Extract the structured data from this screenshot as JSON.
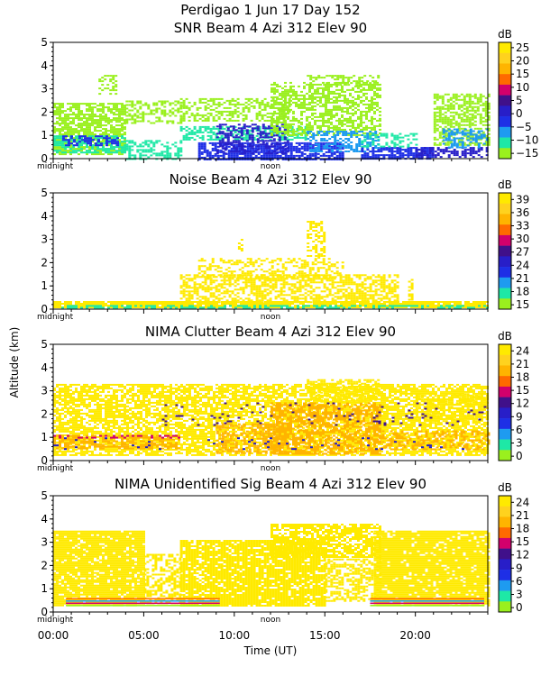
{
  "figure": {
    "header": "Perdigao    1 Jun 17 Day 152",
    "ylabel": "Altitude (km)",
    "xlabel": "Time (UT)",
    "x_ticks": [
      "00:00",
      "05:00",
      "10:00",
      "15:00",
      "20:00"
    ],
    "x_tick_hours": [
      0,
      5,
      10,
      15,
      20
    ],
    "xlim_hours": [
      0,
      24
    ],
    "marker_midnight": "midnight",
    "marker_noon": "noon",
    "colorbar_colors": [
      "#9af01e",
      "#1ee8a6",
      "#1e9bf0",
      "#1e2fe6",
      "#281ec8",
      "#40108a",
      "#d2006c",
      "#ff6a00",
      "#ffb400",
      "#ffd21e",
      "#ffea00"
    ]
  },
  "chart_data": [
    {
      "type": "heatmap",
      "title": "SNR Beam 4 Azi 312 Elev 90",
      "ylim": [
        0,
        5
      ],
      "y_ticks": [
        "0",
        "1",
        "2",
        "3",
        "4",
        "5"
      ],
      "colorbar_label": "dB",
      "colorbar_ticks": [
        "25",
        "20",
        "15",
        "10",
        "5",
        "0",
        "−5",
        "−10",
        "−15"
      ],
      "colorbar_range": [
        -17,
        27
      ]
    },
    {
      "type": "heatmap",
      "title": "Noise Beam 4 Azi 312 Elev 90",
      "ylim": [
        0,
        5
      ],
      "y_ticks": [
        "0",
        "1",
        "2",
        "3",
        "4",
        "5"
      ],
      "colorbar_label": "dB",
      "colorbar_ticks": [
        "39",
        "36",
        "33",
        "30",
        "27",
        "24",
        "21",
        "18",
        "15"
      ],
      "colorbar_range": [
        14,
        40.5
      ]
    },
    {
      "type": "heatmap",
      "title": "NIMA Clutter Beam 4 Azi 312 Elev 90",
      "ylim": [
        0,
        5
      ],
      "y_ticks": [
        "0",
        "1",
        "2",
        "3",
        "4",
        "5"
      ],
      "colorbar_label": "dB",
      "colorbar_ticks": [
        "24",
        "21",
        "18",
        "15",
        "12",
        "9",
        "6",
        "3",
        "0"
      ],
      "colorbar_range": [
        -1,
        25.5
      ]
    },
    {
      "type": "heatmap",
      "title": "NIMA Unidentified Sig Beam 4 Azi 312 Elev 90",
      "ylim": [
        0,
        5
      ],
      "y_ticks": [
        "0",
        "1",
        "2",
        "3",
        "4",
        "5"
      ],
      "colorbar_label": "dB",
      "colorbar_ticks": [
        "24",
        "21",
        "18",
        "15",
        "12",
        "9",
        "6",
        "3",
        "0"
      ],
      "colorbar_range": [
        -1,
        25.5
      ]
    }
  ]
}
